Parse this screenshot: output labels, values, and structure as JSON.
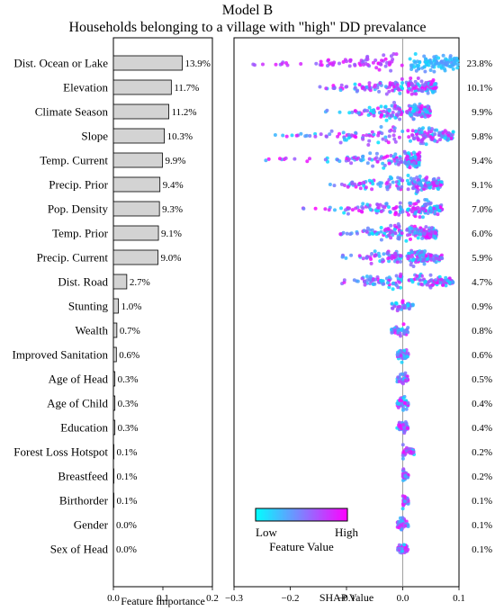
{
  "chart_data": [
    {
      "type": "bar",
      "orientation": "horizontal",
      "title": "Model B",
      "subtitle": "Households belonging to a village with \"high\" DD prevalance",
      "xlabel": "Feature Importance",
      "xlim": [
        0.0,
        0.2
      ],
      "xticks": [
        "0.0",
        "0.1",
        "0.2"
      ],
      "categories": [
        "Dist. Ocean or Lake",
        "Elevation",
        "Climate Season",
        "Slope",
        "Temp. Current",
        "Precip. Prior",
        "Pop. Density",
        "Temp. Prior",
        "Precip. Current",
        "Dist. Road",
        "Stunting",
        "Wealth",
        "Improved Sanitation",
        "Age of Head",
        "Age of Child",
        "Education",
        "Forest Loss Hotspot",
        "Breastfeed",
        "Birthorder",
        "Gender",
        "Sex of Head"
      ],
      "values": [
        0.139,
        0.117,
        0.112,
        0.103,
        0.099,
        0.094,
        0.093,
        0.091,
        0.09,
        0.027,
        0.01,
        0.007,
        0.006,
        0.003,
        0.003,
        0.003,
        0.001,
        0.001,
        0.001,
        0.0,
        0.0
      ],
      "value_labels": [
        "13.9%",
        "11.7%",
        "11.2%",
        "10.3%",
        "9.9%",
        "9.4%",
        "9.3%",
        "9.1%",
        "9.0%",
        "2.7%",
        "1.0%",
        "0.7%",
        "0.6%",
        "0.3%",
        "0.3%",
        "0.3%",
        "0.1%",
        "0.1%",
        "0.1%",
        "0.0%",
        "0.0%"
      ],
      "bar_color": "#d3d3d3",
      "edge_color": "#000000"
    },
    {
      "type": "scatter",
      "subtype": "beeswarm",
      "xlabel": "SHAP Value",
      "xlim": [
        -0.3,
        0.1
      ],
      "xticks": [
        "−0.3",
        "−0.2",
        "−0.1",
        "0.0",
        "0.1"
      ],
      "right_labels": [
        "23.8%",
        "10.1%",
        "9.9%",
        "9.8%",
        "9.4%",
        "9.1%",
        "7.0%",
        "6.0%",
        "5.9%",
        "4.7%",
        "0.9%",
        "0.8%",
        "0.6%",
        "0.5%",
        "0.4%",
        "0.4%",
        "0.2%",
        "0.2%",
        "0.1%",
        "0.1%",
        "0.1%"
      ],
      "colorbar": {
        "label": "Feature Value",
        "low_label": "Low",
        "high_label": "High",
        "low_color": "#00ffff",
        "high_color": "#ff00ff"
      },
      "shap_ranges": [
        [
          -0.3,
          0.1
        ],
        [
          -0.16,
          0.06
        ],
        [
          -0.15,
          0.05
        ],
        [
          -0.26,
          0.09
        ],
        [
          -0.27,
          0.03
        ],
        [
          -0.15,
          0.07
        ],
        [
          -0.19,
          0.07
        ],
        [
          -0.13,
          0.06
        ],
        [
          -0.12,
          0.07
        ],
        [
          -0.13,
          0.09
        ],
        [
          -0.02,
          0.02
        ],
        [
          -0.02,
          0.01
        ],
        [
          -0.01,
          0.01
        ],
        [
          -0.01,
          0.01
        ],
        [
          -0.01,
          0.01
        ],
        [
          -0.01,
          0.01
        ],
        [
          0.0,
          0.02
        ],
        [
          0.0,
          0.01
        ],
        [
          0.0,
          0.01
        ],
        [
          -0.01,
          0.01
        ],
        [
          -0.01,
          0.01
        ]
      ]
    }
  ]
}
